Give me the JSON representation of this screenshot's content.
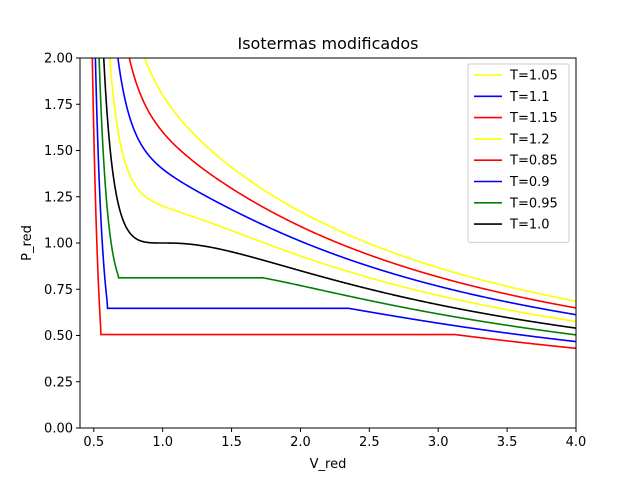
{
  "chart_data": {
    "type": "line",
    "title": "Isotermas modificados",
    "xlabel": "V_red",
    "ylabel": "P_red",
    "xlim": [
      0.4,
      4.0
    ],
    "ylim": [
      0.0,
      2.0
    ],
    "xticks": [
      0.5,
      1.0,
      1.5,
      2.0,
      2.5,
      3.0,
      3.5,
      4.0
    ],
    "xtick_labels": [
      "0.5",
      "1.0",
      "1.5",
      "2.0",
      "2.5",
      "3.0",
      "3.5",
      "4.0"
    ],
    "yticks": [
      0.0,
      0.25,
      0.5,
      0.75,
      1.0,
      1.25,
      1.5,
      1.75,
      2.0
    ],
    "ytick_labels": [
      "0.00",
      "0.25",
      "0.50",
      "0.75",
      "1.00",
      "1.25",
      "1.50",
      "1.75",
      "2.00"
    ],
    "grid": false,
    "legend_position": "top-right",
    "series": [
      {
        "name": "T=1.05",
        "color": "#ffff00",
        "temperature": 1.05
      },
      {
        "name": "T=1.1",
        "color": "#0000ff",
        "temperature": 1.1
      },
      {
        "name": "T=1.15",
        "color": "#ff0000",
        "temperature": 1.15
      },
      {
        "name": "T=1.2",
        "color": "#ffff00",
        "temperature": 1.2
      },
      {
        "name": "T=0.85",
        "color": "#ff0000",
        "temperature": 0.85,
        "plateau_pressure": 0.505,
        "plateau_v_start": 0.55,
        "plateau_v_end": 3.13
      },
      {
        "name": "T=0.9",
        "color": "#0000ff",
        "temperature": 0.9,
        "plateau_pressure": 0.647,
        "plateau_v_start": 0.6,
        "plateau_v_end": 2.35
      },
      {
        "name": "T=0.95",
        "color": "#008000",
        "temperature": 0.95,
        "plateau_pressure": 0.812,
        "plateau_v_start": 0.68,
        "plateau_v_end": 1.72
      },
      {
        "name": "T=1.0",
        "color": "#000000",
        "temperature": 1.0
      }
    ]
  }
}
